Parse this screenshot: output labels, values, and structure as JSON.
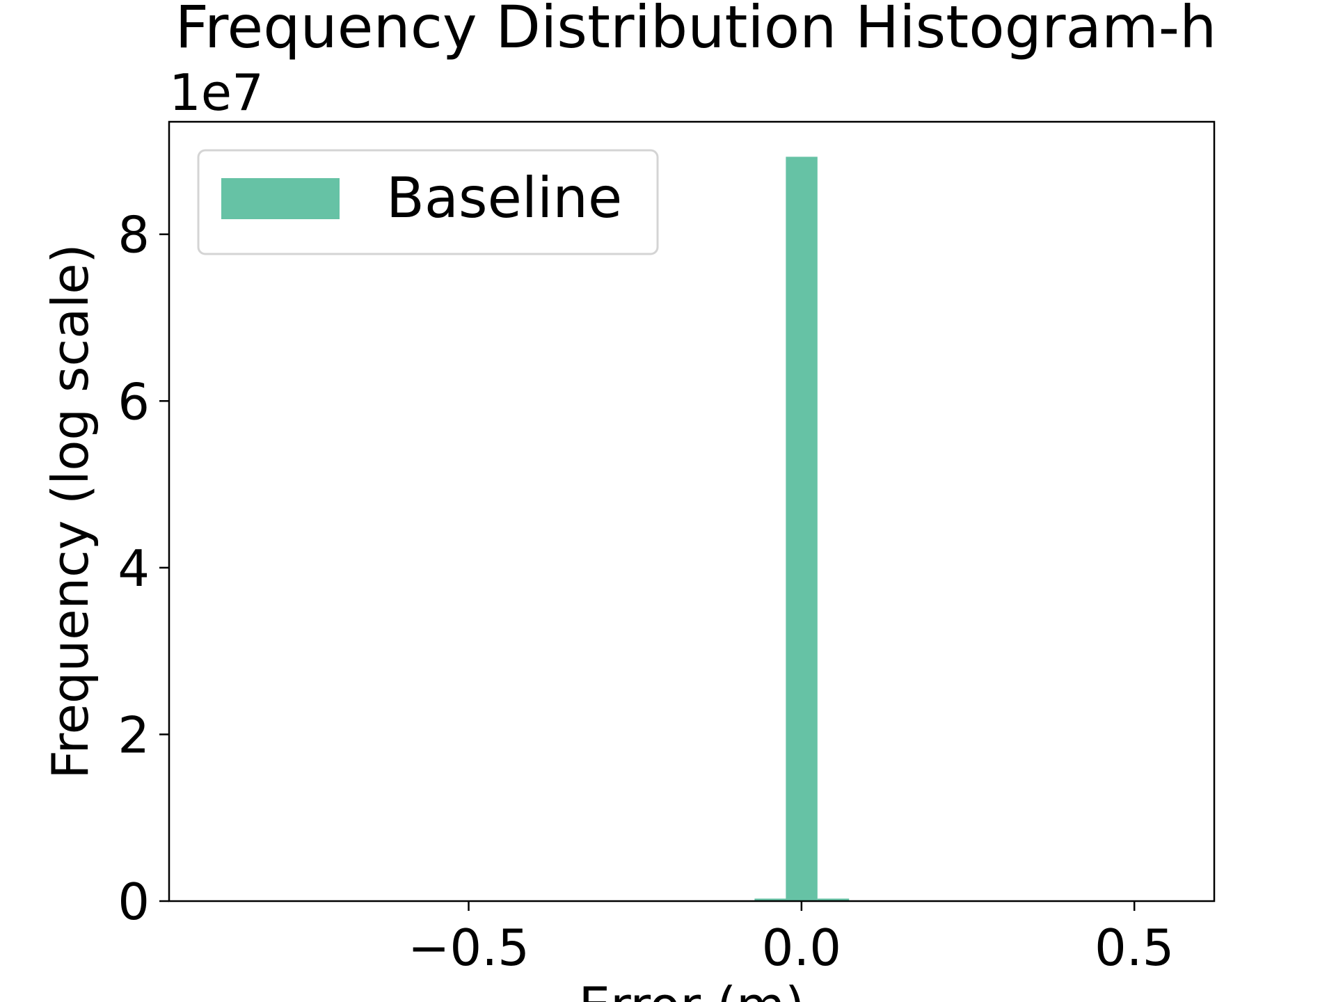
{
  "chart_data": {
    "type": "bar",
    "title": "Frequency Distribution Histogram-h",
    "xlabel": "Error (m)",
    "ylabel": "Frequency (log scale)",
    "y_offset_text": "1e7",
    "xlim": [
      -0.95,
      0.62
    ],
    "ylim": [
      0,
      9.35
    ],
    "y_unit_multiplier": 10000000,
    "x_ticks": [
      -0.5,
      0.0,
      0.5
    ],
    "x_tick_labels": [
      "−0.5",
      "0.0",
      "0.5"
    ],
    "y_ticks": [
      0,
      2,
      4,
      6,
      8
    ],
    "y_tick_labels": [
      "0",
      "2",
      "4",
      "6",
      "8"
    ],
    "bin_width": 0.0475,
    "series": [
      {
        "name": "Baseline",
        "color": "#66c2a5",
        "bin_starts": [
          -0.0705,
          -0.0235,
          0.024
        ],
        "values": [
          0.03,
          8.93,
          0.03
        ]
      }
    ],
    "legend_position": "upper-left",
    "grid": false
  }
}
